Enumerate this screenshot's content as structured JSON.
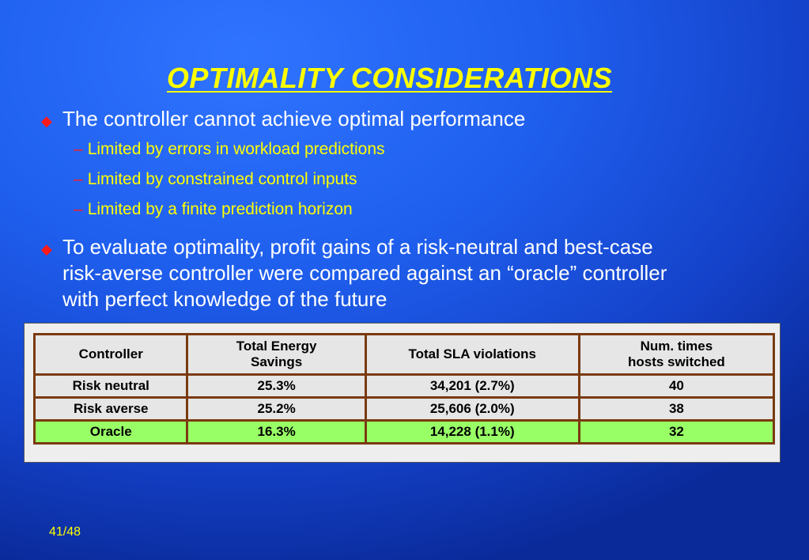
{
  "slide": {
    "title": "OPTIMALITY CONSIDERATIONS",
    "page_number": "41/48"
  },
  "bullets": [
    {
      "text": "The controller cannot achieve optimal performance",
      "subs": [
        "Limited by errors in workload predictions",
        "Limited by constrained control inputs",
        "Limited by a finite prediction horizon"
      ]
    },
    {
      "lines": [
        "To evaluate optimality, profit gains of a risk-neutral and best-case",
        "risk-averse controller were compared against an “oracle” controller",
        "with perfect knowledge of the future"
      ]
    }
  ],
  "table": {
    "headers": [
      [
        "Controller"
      ],
      [
        "Total Energy",
        "Savings"
      ],
      [
        "Total SLA violations"
      ],
      [
        "Num. times",
        "hosts switched"
      ]
    ],
    "rows": [
      [
        "Risk neutral",
        "25.3%",
        "34,201 (2.7%)",
        "40"
      ],
      [
        "Risk averse",
        "25.2%",
        "25,606 (2.0%)",
        "38"
      ],
      [
        "Oracle",
        "16.3%",
        "14,228 (1.1%)",
        "32"
      ]
    ],
    "highlight_color": "#99ff66",
    "border_color": "#7a3a10"
  },
  "colors": {
    "title": "#ffff00",
    "bullet_marker": "#ff1a1a",
    "subtext": "#ffff00",
    "background": "#1f5fee"
  },
  "icons": {
    "bullet": "red-diamond-icon",
    "sub_bullet": "red-dash"
  }
}
